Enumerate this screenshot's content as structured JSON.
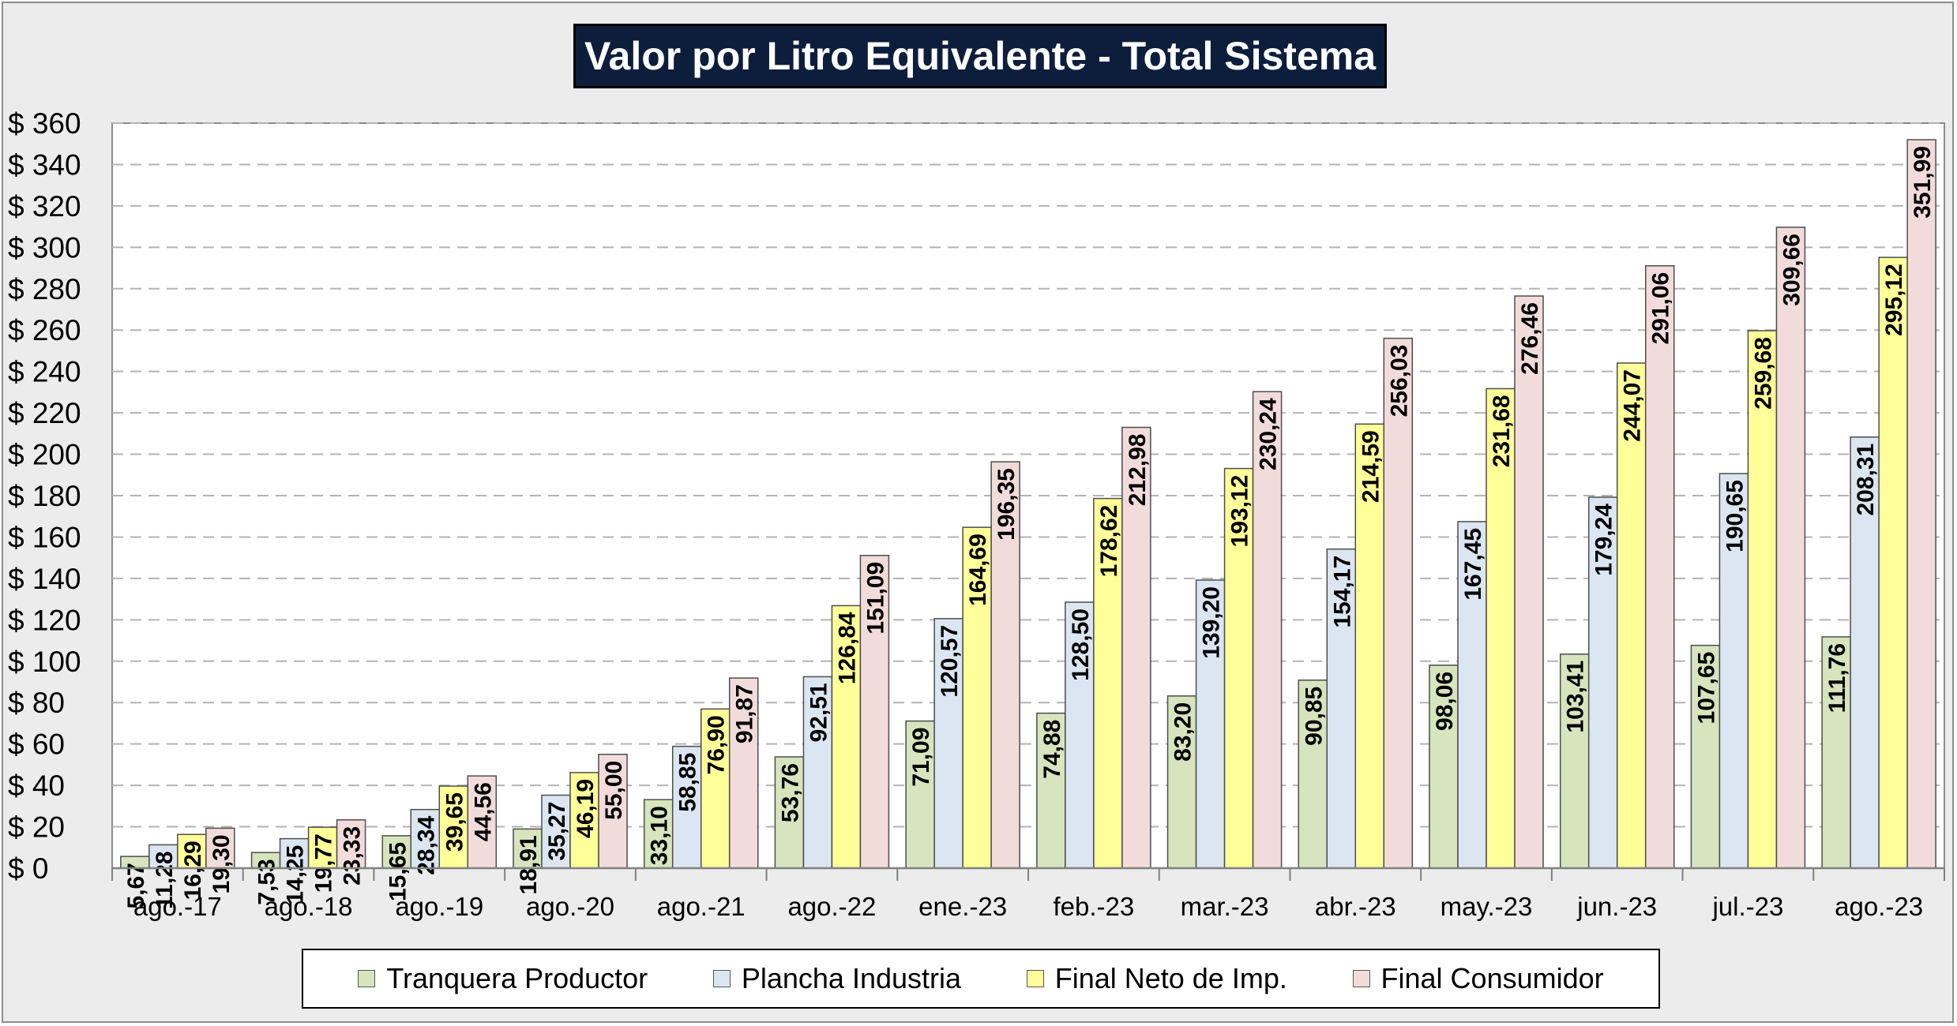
{
  "chart_data": {
    "type": "bar",
    "title": "Valor por Litro Equivalente - Total Sistema",
    "xlabel": "",
    "ylabel": "",
    "ylim": [
      0,
      360
    ],
    "ytick_step": 20,
    "ytick_prefix": "$ ",
    "grid": "horizontal dashed",
    "legend_position": "bottom",
    "categories": [
      "ago.-17",
      "ago.-18",
      "ago.-19",
      "ago.-20",
      "ago.-21",
      "ago.-22",
      "ene.-23",
      "feb.-23",
      "mar.-23",
      "abr.-23",
      "may.-23",
      "jun.-23",
      "jul.-23",
      "ago.-23"
    ],
    "series": [
      {
        "name": "Tranquera Productor",
        "color": "#d7e4bd",
        "values": [
          5.67,
          7.53,
          15.65,
          18.91,
          33.1,
          53.76,
          71.09,
          74.88,
          83.2,
          90.85,
          98.06,
          103.41,
          107.65,
          111.76
        ],
        "labels": [
          "5,67",
          "7,53",
          "15,65",
          "18,91",
          "33,10",
          "53,76",
          "71,09",
          "74,88",
          "83,20",
          "90,85",
          "98,06",
          "103,41",
          "107,65",
          "111,76"
        ]
      },
      {
        "name": "Plancha Industria",
        "color": "#dce6f2",
        "values": [
          11.28,
          14.25,
          28.34,
          35.27,
          58.85,
          92.51,
          120.57,
          128.5,
          139.2,
          154.17,
          167.45,
          179.24,
          190.65,
          208.31
        ],
        "labels": [
          "11,28",
          "14,25",
          "28,34",
          "35,27",
          "58,85",
          "92,51",
          "120,57",
          "128,50",
          "139,20",
          "154,17",
          "167,45",
          "179,24",
          "190,65",
          "208,31"
        ]
      },
      {
        "name": "Final Neto de Imp.",
        "color": "#ffff99",
        "values": [
          16.29,
          19.77,
          39.65,
          46.19,
          76.9,
          126.84,
          164.69,
          178.62,
          193.12,
          214.59,
          231.68,
          244.07,
          259.68,
          295.12
        ],
        "labels": [
          "16,29",
          "19,77",
          "39,65",
          "46,19",
          "76,90",
          "126,84",
          "164,69",
          "178,62",
          "193,12",
          "214,59",
          "231,68",
          "244,07",
          "259,68",
          "295,12"
        ]
      },
      {
        "name": "Final Consumidor",
        "color": "#f2dcdb",
        "values": [
          19.3,
          23.33,
          44.56,
          55.0,
          91.87,
          151.09,
          196.35,
          212.98,
          230.24,
          256.03,
          276.46,
          291.06,
          309.66,
          351.99
        ],
        "labels": [
          "19,30",
          "23,33",
          "44,56",
          "55,00",
          "91,87",
          "151,09",
          "196,35",
          "212,98",
          "230,24",
          "256,03",
          "276,46",
          "291,06",
          "309,66",
          "351,99"
        ]
      }
    ]
  }
}
